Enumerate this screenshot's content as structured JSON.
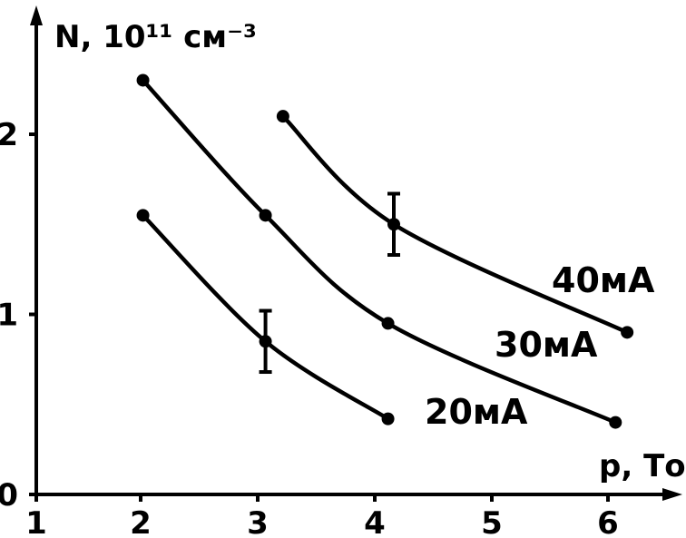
{
  "chart_data": {
    "type": "line",
    "xlabel": "p, Тор",
    "ylabel": "N, 10¹¹ см⁻³",
    "xlim": [
      1,
      6.5
    ],
    "ylim": [
      0,
      2.5
    ],
    "xticks": [
      "1",
      "2",
      "3",
      "4",
      "5",
      "6"
    ],
    "yticks": [
      "0",
      "1",
      "2"
    ],
    "grid": false,
    "series": [
      {
        "name": "40мА",
        "x": [
          3.35,
          4.3,
          6.3
        ],
        "y": [
          2.1,
          1.5,
          0.9
        ],
        "error_bars": [
          {
            "x": 4.3,
            "y": 1.5,
            "err": 0.17
          }
        ]
      },
      {
        "name": "30мА",
        "x": [
          2.15,
          3.2,
          4.25,
          6.2
        ],
        "y": [
          2.3,
          1.55,
          0.95,
          0.4
        ]
      },
      {
        "name": "20мА",
        "x": [
          2.15,
          3.2,
          4.25
        ],
        "y": [
          1.55,
          0.85,
          0.42
        ],
        "error_bars": [
          {
            "x": 3.2,
            "y": 0.85,
            "err": 0.17
          }
        ]
      }
    ]
  }
}
